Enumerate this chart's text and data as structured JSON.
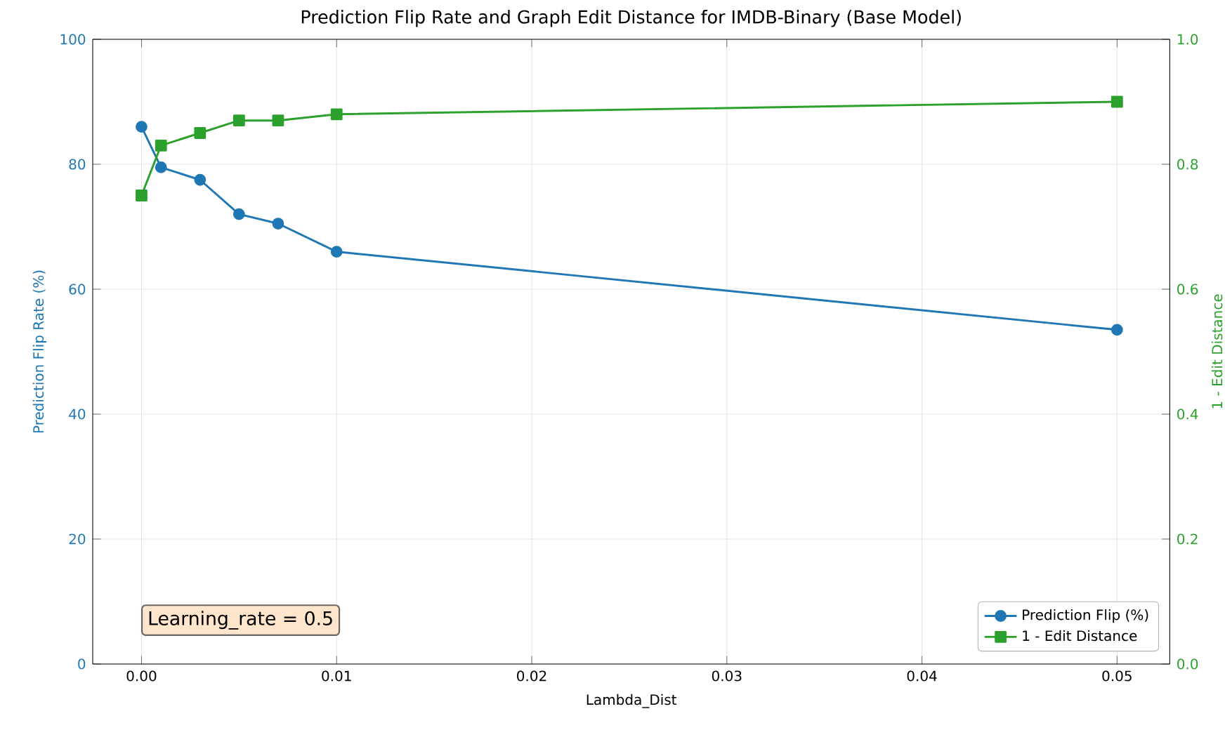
{
  "chart_data": {
    "type": "line",
    "title": "Prediction Flip Rate and Graph Edit Distance for IMDB-Binary (Base Model)",
    "xlabel": "Lambda_Dist",
    "ylabel": "Prediction Flip Rate (%)",
    "y2label": "1 - Edit Distance",
    "x": [
      0,
      0.001,
      0.003,
      0.005,
      0.007,
      0.01,
      0.05
    ],
    "series": [
      {
        "name": "Prediction Flip (%)",
        "color": "#1f77b4",
        "marker": "circle",
        "values": [
          86,
          79.5,
          77.5,
          72,
          70.5,
          66,
          53.5
        ]
      },
      {
        "name": "1 - Edit Distance",
        "color": "#2ca02c",
        "marker": "square",
        "axis": "y2",
        "values": [
          0.75,
          0.83,
          0.85,
          0.87,
          0.87,
          0.88,
          0.9
        ]
      }
    ],
    "xlim": [
      -0.0025,
      0.0527
    ],
    "xticks": [
      {
        "value": 0,
        "label": "0.00"
      },
      {
        "value": 0.01,
        "label": "0.01"
      },
      {
        "value": 0.02,
        "label": "0.02"
      },
      {
        "value": 0.03,
        "label": "0.03"
      },
      {
        "value": 0.04,
        "label": "0.04"
      },
      {
        "value": 0.05,
        "label": "0.05"
      }
    ],
    "ylim": [
      0,
      100
    ],
    "yticks": [
      0,
      20,
      40,
      60,
      80,
      100
    ],
    "y2lim": [
      0,
      1
    ],
    "y2ticks": [
      {
        "value": 0,
        "label": "0.0"
      },
      {
        "value": 0.2,
        "label": "0.2"
      },
      {
        "value": 0.4,
        "label": "0.4"
      },
      {
        "value": 0.6,
        "label": "0.6"
      },
      {
        "value": 0.8,
        "label": "0.8"
      },
      {
        "value": 1,
        "label": "1.0"
      }
    ],
    "annotations": [
      "Learning_rate = 0.5"
    ],
    "grid": true,
    "legend": "bottom right"
  }
}
